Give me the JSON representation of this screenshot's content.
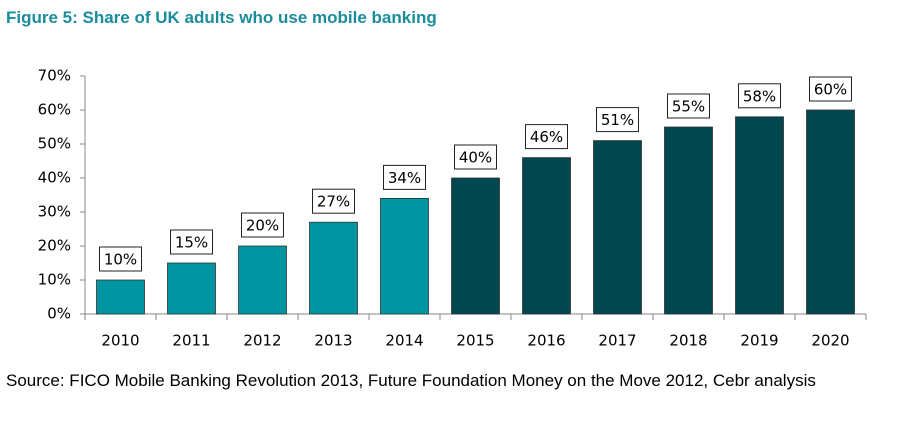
{
  "chart_data": {
    "type": "bar",
    "title": "Figure 5: Share of UK adults who use mobile banking",
    "source": "Source: FICO Mobile Banking Revolution 2013, Future Foundation Money on the Move 2012, Cebr analysis",
    "categories": [
      "2010",
      "2011",
      "2012",
      "2013",
      "2014",
      "2015",
      "2016",
      "2017",
      "2018",
      "2019",
      "2020"
    ],
    "values": [
      10,
      15,
      20,
      27,
      34,
      40,
      46,
      51,
      55,
      58,
      60
    ],
    "value_labels": [
      "10%",
      "15%",
      "20%",
      "27%",
      "34%",
      "40%",
      "46%",
      "51%",
      "55%",
      "58%",
      "60%"
    ],
    "colors": [
      "#0095a0",
      "#0095a0",
      "#0095a0",
      "#0095a0",
      "#0095a0",
      "#00474f",
      "#00474f",
      "#00474f",
      "#00474f",
      "#00474f",
      "#00474f"
    ],
    "ylim": [
      0,
      70
    ],
    "yticks": [
      {
        "value": 0,
        "label": "0%"
      },
      {
        "value": 10,
        "label": "10%"
      },
      {
        "value": 20,
        "label": "20%"
      },
      {
        "value": 30,
        "label": "30%"
      },
      {
        "value": 40,
        "label": "40%"
      },
      {
        "value": 50,
        "label": "50%"
      },
      {
        "value": 60,
        "label": "60%"
      },
      {
        "value": 70,
        "label": "70%"
      }
    ],
    "grid": false
  }
}
